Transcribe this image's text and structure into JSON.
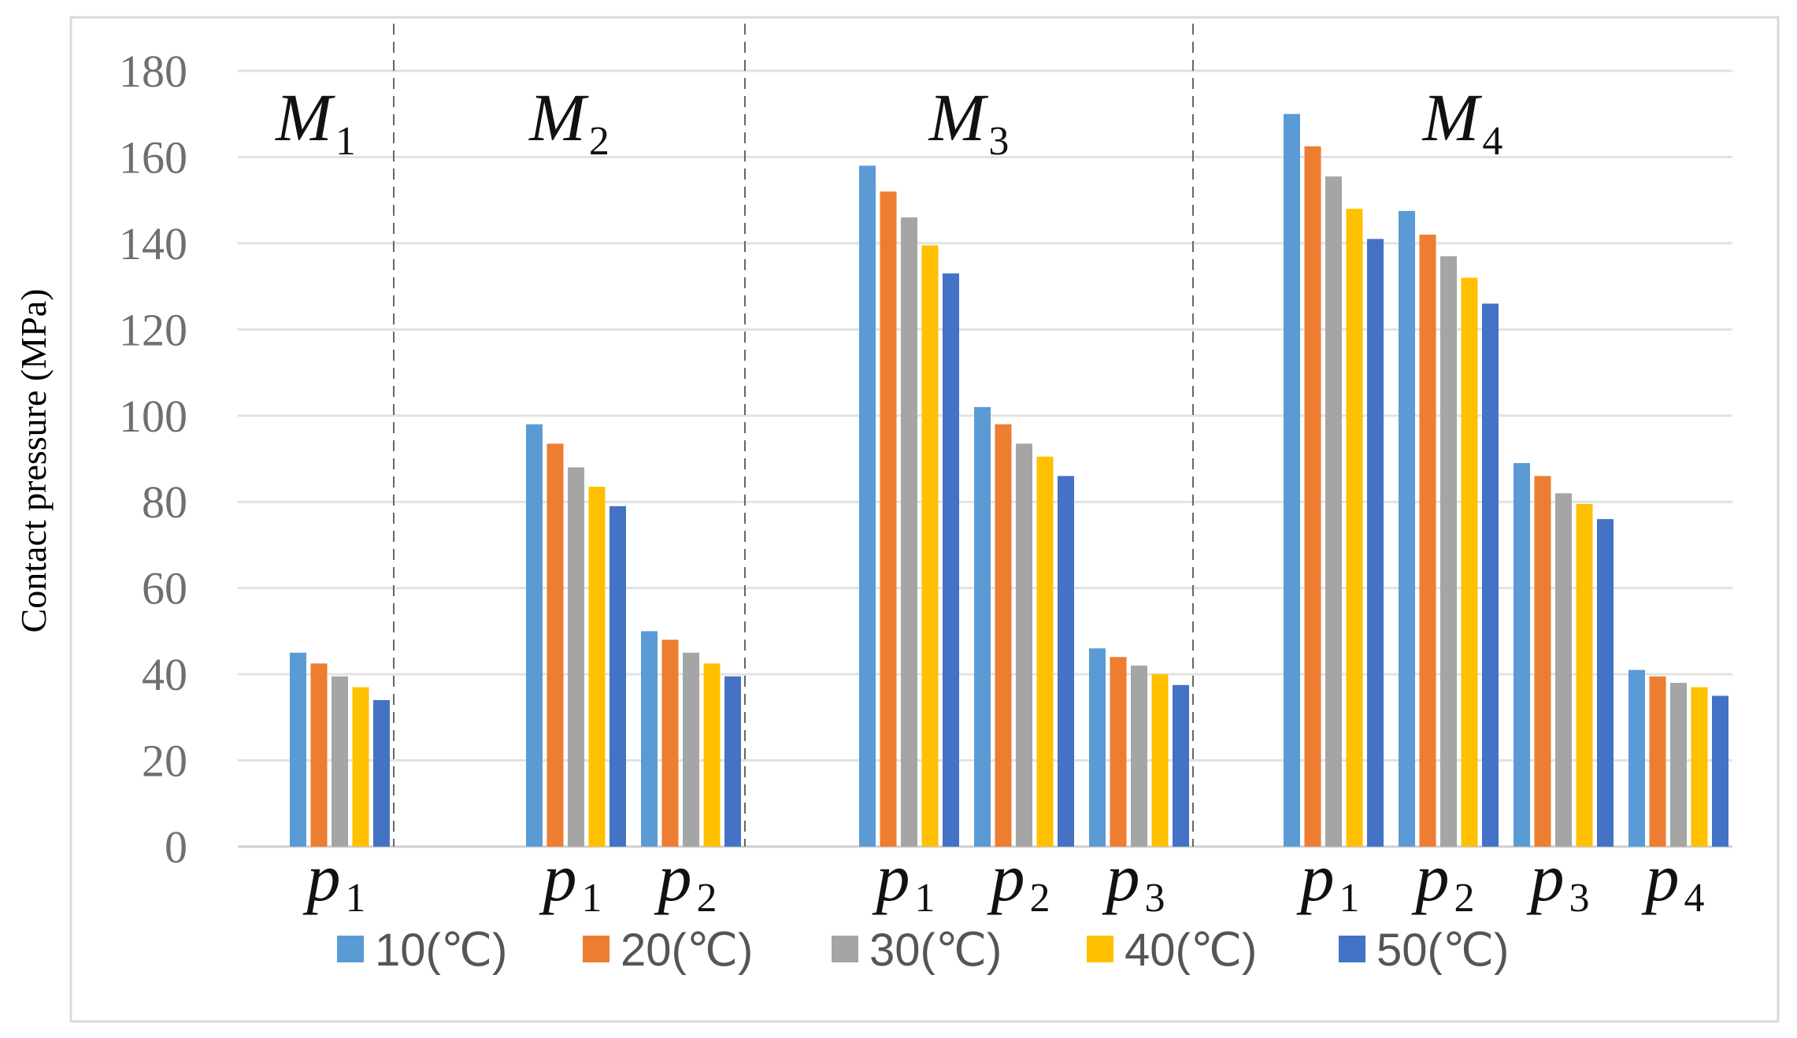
{
  "chart_data": {
    "type": "bar",
    "title": "",
    "xlabel": "",
    "ylabel": "Contact pressure (MPa)",
    "ylim": [
      0,
      180
    ],
    "yticks": [
      "0",
      "20",
      "40",
      "60",
      "80",
      "100",
      "120",
      "140",
      "160",
      "180"
    ],
    "grid": true,
    "legend_position": "bottom",
    "series_names": [
      "10(℃)",
      "20(℃)",
      "30(℃)",
      "40(℃)",
      "50(℃)"
    ],
    "series_colors": [
      "#5B9BD5",
      "#ED7D31",
      "#A5A5A5",
      "#FFC000",
      "#4472C4"
    ],
    "groups": [
      {
        "name": "M",
        "sub": "1",
        "categories": [
          {
            "name": "p",
            "sub": "1",
            "values": [
              45,
              42.5,
              39.5,
              37,
              34
            ]
          }
        ]
      },
      {
        "name": "M",
        "sub": "2",
        "categories": [
          {
            "name": "p",
            "sub": "1",
            "values": [
              98,
              93.5,
              88,
              83.5,
              79
            ]
          },
          {
            "name": "p",
            "sub": "2",
            "values": [
              50,
              48,
              45,
              42.5,
              39.5
            ]
          }
        ]
      },
      {
        "name": "M",
        "sub": "3",
        "categories": [
          {
            "name": "p",
            "sub": "1",
            "values": [
              158,
              152,
              146,
              139.5,
              133
            ]
          },
          {
            "name": "p",
            "sub": "2",
            "values": [
              102,
              98,
              93.5,
              90.5,
              86
            ]
          },
          {
            "name": "p",
            "sub": "3",
            "values": [
              46,
              44,
              42,
              40,
              37.5
            ]
          }
        ]
      },
      {
        "name": "M",
        "sub": "4",
        "categories": [
          {
            "name": "p",
            "sub": "1",
            "values": [
              170,
              162.5,
              155.5,
              148,
              141
            ]
          },
          {
            "name": "p",
            "sub": "2",
            "values": [
              147.5,
              142,
              137,
              132,
              126
            ]
          },
          {
            "name": "p",
            "sub": "3",
            "values": [
              89,
              86,
              82,
              79.5,
              76
            ]
          },
          {
            "name": "p",
            "sub": "4",
            "values": [
              41,
              39.5,
              38,
              37,
              35
            ]
          }
        ]
      }
    ]
  }
}
